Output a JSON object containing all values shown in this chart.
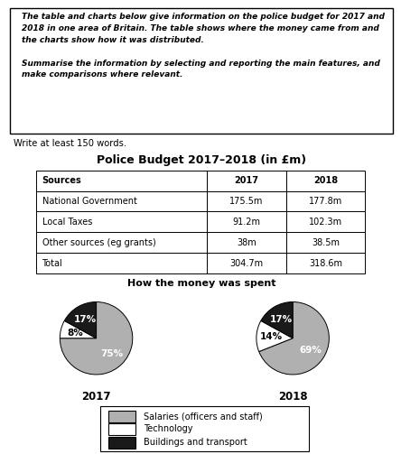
{
  "write_text": "Write at least 150 words.",
  "table_title": "Police Budget 2017–2018 (in £m)",
  "table_headers": [
    "Sources",
    "2017",
    "2018"
  ],
  "table_rows": [
    [
      "National Government",
      "175.5m",
      "177.8m"
    ],
    [
      "Local Taxes",
      "91.2m",
      "102.3m"
    ],
    [
      "Other sources (eg grants)",
      "38m",
      "38.5m"
    ],
    [
      "Total",
      "304.7m",
      "318.6m"
    ]
  ],
  "pie_title": "How the money was spent",
  "pie_2017": [
    75,
    8,
    17
  ],
  "pie_2018": [
    69,
    14,
    17
  ],
  "pie_labels_2017": [
    "75%",
    "8%",
    "17%"
  ],
  "pie_labels_2018": [
    "69%",
    "14%",
    "17%"
  ],
  "pie_colors": [
    "#b0b0b0",
    "#ffffff",
    "#1a1a1a"
  ],
  "pie_year_2017": "2017",
  "pie_year_2018": "2018",
  "legend_items": [
    "Salaries (officers and staff)",
    "Technology",
    "Buildings and transport"
  ],
  "legend_colors": [
    "#b0b0b0",
    "#ffffff",
    "#1a1a1a"
  ],
  "box_text_line1": "The table and charts below give information on the police budget for 2017 and",
  "box_text_line2": "2018 in one area of Britain. The table shows where the money came from and",
  "box_text_line3": "the charts show how it was distributed.",
  "box_text_line4": "Summarise the information by selecting and reporting the main features, and",
  "box_text_line5": "make comparisons where relevant."
}
